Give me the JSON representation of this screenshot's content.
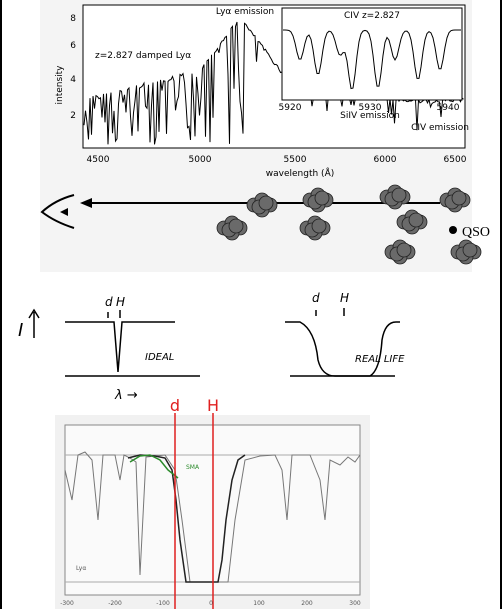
{
  "spectrum": {
    "y_label": "intensity",
    "x_label": "wavelength (Å)",
    "x_ticks": [
      "4500",
      "5000",
      "5500",
      "6000",
      "6500"
    ],
    "y_ticks": [
      "8",
      "6",
      "4",
      "2"
    ],
    "annotations": {
      "damped": "z=2.827 damped Lyα",
      "lya": "Lyα emission",
      "siiv": "SiIV emission",
      "civ": "CIV emission"
    },
    "inset": {
      "title": "CIV z=2.827",
      "x_ticks": [
        "5920",
        "5930",
        "5940"
      ]
    }
  },
  "sightline": {
    "source": "QSO"
  },
  "sketch": {
    "axis_symbol": "I",
    "ideal": {
      "marks": [
        "d",
        "H"
      ],
      "label": "IDEAL"
    },
    "real": {
      "marks": [
        "d",
        "H"
      ],
      "label": "REAL LIFE"
    },
    "lambda": "λ →"
  },
  "profile": {
    "markers": [
      "d",
      "H"
    ],
    "x_ticks": [
      "-300",
      "-200",
      "-100",
      "0",
      "100",
      "200",
      "300"
    ],
    "line_label": "Lyα",
    "fit_label": "SMA"
  }
}
